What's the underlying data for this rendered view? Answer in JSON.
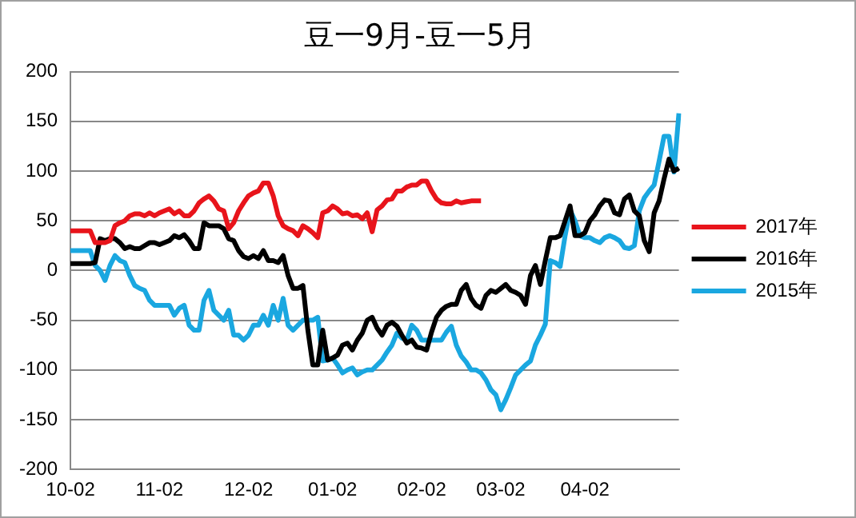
{
  "chart_data": {
    "type": "line",
    "title": "豆一9月-豆一5月",
    "categories": [
      "10-02",
      null,
      null,
      null,
      null,
      null,
      null,
      null,
      null,
      null,
      null,
      null,
      null,
      null,
      null,
      null,
      null,
      null,
      "11-02",
      null,
      null,
      null,
      null,
      null,
      null,
      null,
      null,
      null,
      null,
      null,
      null,
      null,
      null,
      null,
      null,
      null,
      "12-02",
      null,
      null,
      null,
      null,
      null,
      null,
      null,
      null,
      null,
      null,
      null,
      null,
      null,
      null,
      null,
      null,
      "01-02",
      null,
      null,
      null,
      null,
      null,
      null,
      null,
      null,
      null,
      null,
      null,
      null,
      null,
      null,
      null,
      null,
      null,
      "02-02",
      null,
      null,
      null,
      null,
      null,
      null,
      null,
      null,
      null,
      null,
      null,
      null,
      null,
      null,
      null,
      "03-02",
      null,
      null,
      null,
      null,
      null,
      null,
      null,
      null,
      null,
      null,
      null,
      null,
      null,
      null,
      null,
      null,
      "04-02",
      null,
      null,
      null,
      null,
      null,
      null,
      null,
      null,
      null,
      null,
      null,
      null,
      null,
      null,
      null,
      null,
      null,
      null,
      null
    ],
    "series": [
      {
        "name": "2017年",
        "color": "#e8141b",
        "values": [
          40,
          40,
          40,
          40,
          40,
          28,
          28,
          28,
          30,
          45,
          48,
          50,
          55,
          57,
          57,
          55,
          58,
          55,
          58,
          60,
          62,
          57,
          60,
          55,
          55,
          60,
          68,
          72,
          75,
          70,
          62,
          60,
          42,
          48,
          60,
          68,
          75,
          78,
          80,
          88,
          88,
          75,
          55,
          45,
          42,
          40,
          35,
          45,
          42,
          38,
          33,
          58,
          60,
          65,
          62,
          57,
          58,
          55,
          56,
          52,
          58,
          39,
          61,
          65,
          71,
          72,
          80,
          80,
          84,
          86,
          86,
          90,
          90,
          80,
          72,
          68,
          67,
          67,
          70,
          68,
          69,
          70,
          70,
          70,
          null,
          null,
          null,
          null,
          null,
          null,
          null,
          null,
          null,
          null,
          null,
          null,
          null,
          null,
          null,
          null,
          null,
          null,
          null,
          null,
          null,
          null,
          null,
          null,
          null,
          null,
          null,
          null,
          null,
          null,
          null,
          null,
          null,
          null,
          null,
          null,
          null,
          null,
          null,
          null
        ]
      },
      {
        "name": "2016年",
        "color": "#000000",
        "values": [
          7,
          7,
          7,
          7,
          7,
          8,
          32,
          30,
          32,
          32,
          28,
          22,
          24,
          22,
          22,
          25,
          28,
          28,
          26,
          28,
          30,
          35,
          33,
          36,
          30,
          22,
          22,
          48,
          45,
          45,
          45,
          42,
          32,
          30,
          20,
          14,
          12,
          15,
          12,
          20,
          10,
          10,
          8,
          15,
          -5,
          -18,
          -18,
          -15,
          -60,
          -95,
          -95,
          -60,
          -90,
          -88,
          -85,
          -75,
          -73,
          -80,
          -70,
          -63,
          -50,
          -47,
          -58,
          -65,
          -55,
          -52,
          -56,
          -65,
          -73,
          -70,
          -77,
          -78,
          -80,
          -62,
          -47,
          -40,
          -36,
          -34,
          -34,
          -20,
          -14,
          -28,
          -35,
          -38,
          -25,
          -20,
          -22,
          -18,
          -14,
          -20,
          -22,
          -25,
          -34,
          -5,
          5,
          -14,
          10,
          33,
          33,
          35,
          50,
          65,
          35,
          35,
          38,
          50,
          56,
          65,
          71,
          70,
          58,
          56,
          72,
          76,
          60,
          55,
          30,
          19,
          58,
          70,
          92,
          112,
          100,
          103
        ]
      },
      {
        "name": "2015年",
        "color": "#1aa7e0",
        "values": [
          20,
          20,
          20,
          20,
          20,
          5,
          0,
          -10,
          5,
          15,
          10,
          8,
          -5,
          -15,
          -18,
          -20,
          -30,
          -35,
          -35,
          -35,
          -35,
          -45,
          -38,
          -35,
          -55,
          -60,
          -60,
          -30,
          -20,
          -40,
          -45,
          -50,
          -40,
          -65,
          -65,
          -70,
          -65,
          -55,
          -55,
          -45,
          -55,
          -35,
          -50,
          -28,
          -55,
          -60,
          -55,
          -50,
          -50,
          -50,
          -47,
          -91,
          -90,
          -88,
          -95,
          -103,
          -100,
          -98,
          -105,
          -102,
          -100,
          -100,
          -95,
          -90,
          -82,
          -75,
          -63,
          -68,
          -70,
          -55,
          -60,
          -70,
          -70,
          -70,
          -70,
          -70,
          -62,
          -56,
          -75,
          -86,
          -92,
          -100,
          -100,
          -103,
          -110,
          -120,
          -125,
          -140,
          -130,
          -118,
          -105,
          -100,
          -95,
          -91,
          -75,
          -65,
          -54,
          10,
          8,
          4,
          35,
          61,
          50,
          35,
          33,
          33,
          30,
          28,
          33,
          35,
          33,
          30,
          23,
          22,
          25,
          60,
          73,
          80,
          86,
          110,
          135,
          135,
          99,
          158
        ]
      }
    ],
    "ylim": [
      -200,
      200
    ],
    "yticks": [
      -200,
      -150,
      -100,
      -50,
      0,
      50,
      100,
      150,
      200
    ],
    "grid": "y",
    "legend": "right",
    "marker": "none",
    "line_style": "solid"
  }
}
